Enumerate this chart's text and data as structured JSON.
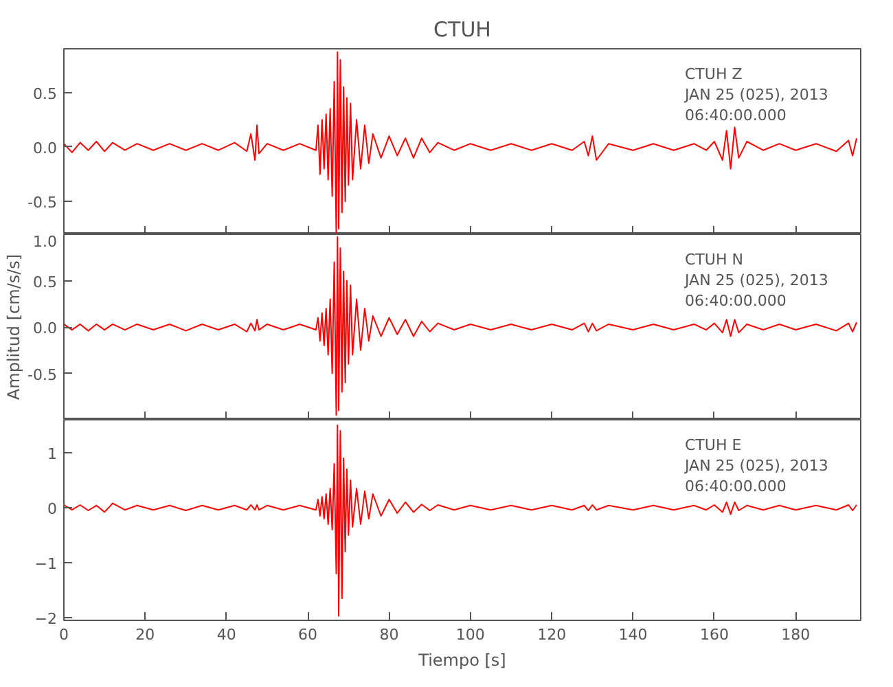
{
  "chart_data": [
    {
      "type": "line",
      "title": "CTUH",
      "tick_labels": "y",
      "xlim": [
        0,
        196
      ],
      "xticks": [
        0,
        20,
        40,
        60,
        80,
        100,
        120,
        140,
        160,
        180
      ],
      "ylim": [
        -0.8,
        0.9
      ],
      "yticks": [
        {
          "value": -0.5,
          "label": "-0.5"
        },
        {
          "value": 0,
          "label": "0.0"
        },
        {
          "value": 0.5,
          "label": "0.5"
        }
      ],
      "grid": false,
      "annotations": [
        "CTUH   Z",
        "JAN 25 (025), 2013",
        "06:40:00.000"
      ],
      "x": [
        0,
        2,
        4,
        6,
        8,
        10,
        12,
        15,
        18,
        22,
        26,
        30,
        34,
        38,
        42,
        45,
        46,
        47,
        47.5,
        48,
        50,
        54,
        58,
        62,
        62.5,
        63,
        63.5,
        64,
        64.5,
        65,
        65.5,
        66,
        66.5,
        67,
        67.3,
        67.6,
        68,
        68.4,
        68.8,
        69.2,
        69.6,
        70,
        70.5,
        71,
        72,
        73,
        74,
        75,
        76,
        78,
        80,
        82,
        84,
        86,
        88,
        90,
        92,
        96,
        100,
        105,
        110,
        115,
        120,
        125,
        128,
        129,
        130,
        131,
        134,
        140,
        145,
        150,
        155,
        158,
        160,
        162,
        163,
        164,
        165,
        166,
        168,
        172,
        176,
        180,
        185,
        190,
        193,
        194,
        195
      ],
      "series": [
        {
          "color": "#ff0000",
          "values": [
            0.03,
            -0.05,
            0.04,
            -0.03,
            0.05,
            -0.04,
            0.04,
            -0.03,
            0.03,
            -0.03,
            0.03,
            -0.03,
            0.03,
            -0.03,
            0.04,
            -0.04,
            0.12,
            -0.12,
            0.2,
            -0.06,
            0.03,
            -0.03,
            0.03,
            -0.03,
            0.2,
            -0.25,
            0.25,
            -0.2,
            0.3,
            -0.3,
            0.35,
            -0.45,
            0.6,
            -0.8,
            0.87,
            -0.75,
            0.8,
            -0.6,
            0.55,
            -0.5,
            0.45,
            -0.35,
            0.4,
            -0.3,
            0.25,
            -0.2,
            0.2,
            -0.15,
            0.12,
            -0.1,
            0.1,
            -0.08,
            0.08,
            -0.1,
            0.08,
            -0.05,
            0.04,
            -0.03,
            0.03,
            -0.03,
            0.03,
            -0.03,
            0.03,
            -0.03,
            0.05,
            -0.08,
            0.1,
            -0.12,
            0.03,
            -0.03,
            0.03,
            -0.03,
            0.03,
            -0.03,
            0.05,
            -0.12,
            0.15,
            -0.2,
            0.18,
            -0.1,
            0.05,
            -0.03,
            0.03,
            -0.03,
            0.03,
            -0.04,
            0.06,
            -0.08,
            0.08
          ]
        }
      ]
    },
    {
      "type": "line",
      "tick_labels": "y",
      "ylabel": "Amplitud [cm/s/s]",
      "xlim": [
        0,
        196
      ],
      "xticks": [
        0,
        20,
        40,
        60,
        80,
        100,
        120,
        140,
        160,
        180
      ],
      "ylim": [
        -1.0,
        1.0
      ],
      "yticks": [
        {
          "value": -0.5,
          "label": "-0.5"
        },
        {
          "value": 0,
          "label": "0.0"
        },
        {
          "value": 0.5,
          "label": "0.5"
        },
        {
          "value": 1.0,
          "label": "1.0"
        }
      ],
      "grid": false,
      "annotations": [
        "CTUH   N",
        "JAN 25 (025), 2013",
        "06:40:00.000"
      ],
      "x": [
        0,
        2,
        4,
        6,
        8,
        10,
        12,
        15,
        18,
        22,
        26,
        30,
        34,
        38,
        42,
        45,
        46,
        47,
        47.5,
        48,
        50,
        54,
        58,
        62,
        62.5,
        63,
        63.5,
        64,
        64.5,
        65,
        65.5,
        66,
        66.5,
        67,
        67.3,
        67.6,
        68,
        68.4,
        68.8,
        69.2,
        69.6,
        70,
        70.5,
        71,
        72,
        73,
        74,
        75,
        76,
        78,
        80,
        82,
        84,
        86,
        88,
        90,
        92,
        96,
        100,
        105,
        110,
        115,
        120,
        125,
        128,
        129,
        130,
        131,
        134,
        140,
        145,
        150,
        155,
        158,
        160,
        162,
        163,
        164,
        165,
        166,
        168,
        172,
        176,
        180,
        185,
        190,
        193,
        194,
        195
      ],
      "series": [
        {
          "color": "#ff0000",
          "values": [
            0.03,
            -0.03,
            0.03,
            -0.04,
            0.03,
            -0.03,
            0.03,
            -0.03,
            0.03,
            -0.03,
            0.03,
            -0.04,
            0.03,
            -0.03,
            0.03,
            -0.05,
            0.04,
            -0.04,
            0.08,
            -0.03,
            0.03,
            -0.03,
            0.03,
            -0.03,
            0.1,
            -0.15,
            0.15,
            -0.2,
            0.2,
            -0.3,
            0.3,
            -0.5,
            0.7,
            -0.95,
            0.97,
            -0.9,
            0.85,
            -0.7,
            0.6,
            -0.6,
            0.5,
            -0.4,
            0.45,
            -0.3,
            0.3,
            -0.25,
            0.2,
            -0.15,
            0.12,
            -0.1,
            0.1,
            -0.08,
            0.08,
            -0.1,
            0.06,
            -0.05,
            0.04,
            -0.03,
            0.03,
            -0.03,
            0.03,
            -0.03,
            0.03,
            -0.03,
            0.04,
            -0.05,
            0.04,
            -0.04,
            0.03,
            -0.03,
            0.03,
            -0.03,
            0.03,
            -0.03,
            0.04,
            -0.06,
            0.08,
            -0.1,
            0.08,
            -0.06,
            0.03,
            -0.03,
            0.03,
            -0.03,
            0.03,
            -0.04,
            0.04,
            -0.05,
            0.05
          ]
        }
      ]
    },
    {
      "type": "line",
      "xlabel": "Tiempo [s]",
      "xlim": [
        0,
        196
      ],
      "xticks": [
        0,
        20,
        40,
        60,
        80,
        100,
        120,
        140,
        160,
        180
      ],
      "ylim": [
        -2.05,
        1.6
      ],
      "yticks": [
        -2,
        -1,
        0,
        1
      ],
      "grid": false,
      "annotations": [
        "CTUH   E",
        "JAN 25 (025), 2013",
        "06:40:00.000"
      ],
      "x": [
        0,
        2,
        4,
        6,
        8,
        10,
        12,
        15,
        18,
        22,
        26,
        30,
        34,
        38,
        42,
        45,
        46,
        47,
        47.5,
        48,
        50,
        54,
        58,
        62,
        62.5,
        63,
        63.5,
        64,
        64.5,
        65,
        65.5,
        66,
        66.5,
        67,
        67.3,
        67.6,
        68,
        68.4,
        68.8,
        69.2,
        69.6,
        70,
        70.5,
        71,
        72,
        73,
        74,
        75,
        76,
        78,
        80,
        82,
        84,
        86,
        88,
        90,
        92,
        96,
        100,
        105,
        110,
        115,
        120,
        125,
        128,
        129,
        130,
        131,
        134,
        140,
        145,
        150,
        155,
        158,
        160,
        162,
        163,
        164,
        165,
        166,
        168,
        172,
        176,
        180,
        185,
        190,
        193,
        194,
        195
      ],
      "series": [
        {
          "color": "#ff0000",
          "values": [
            0.05,
            -0.04,
            0.05,
            -0.05,
            0.04,
            -0.08,
            0.08,
            -0.04,
            0.04,
            -0.04,
            0.04,
            -0.05,
            0.04,
            -0.04,
            0.04,
            -0.04,
            0.05,
            -0.04,
            0.05,
            -0.04,
            0.04,
            -0.04,
            0.04,
            -0.04,
            0.15,
            -0.15,
            0.2,
            -0.2,
            0.25,
            -0.3,
            0.35,
            -0.4,
            0.8,
            -1.2,
            1.5,
            -1.97,
            1.4,
            -1.65,
            0.9,
            -0.8,
            0.7,
            -0.5,
            0.5,
            -0.35,
            0.35,
            -0.3,
            0.3,
            -0.2,
            0.25,
            -0.15,
            0.15,
            -0.1,
            0.1,
            -0.08,
            0.06,
            -0.05,
            0.05,
            -0.04,
            0.04,
            -0.04,
            0.04,
            -0.04,
            0.04,
            -0.04,
            0.04,
            -0.05,
            0.05,
            -0.04,
            0.04,
            -0.04,
            0.04,
            -0.04,
            0.04,
            -0.04,
            0.05,
            -0.08,
            0.1,
            -0.12,
            0.1,
            -0.05,
            0.04,
            -0.04,
            0.04,
            -0.04,
            0.04,
            -0.04,
            0.05,
            -0.05,
            0.05
          ]
        }
      ]
    }
  ]
}
